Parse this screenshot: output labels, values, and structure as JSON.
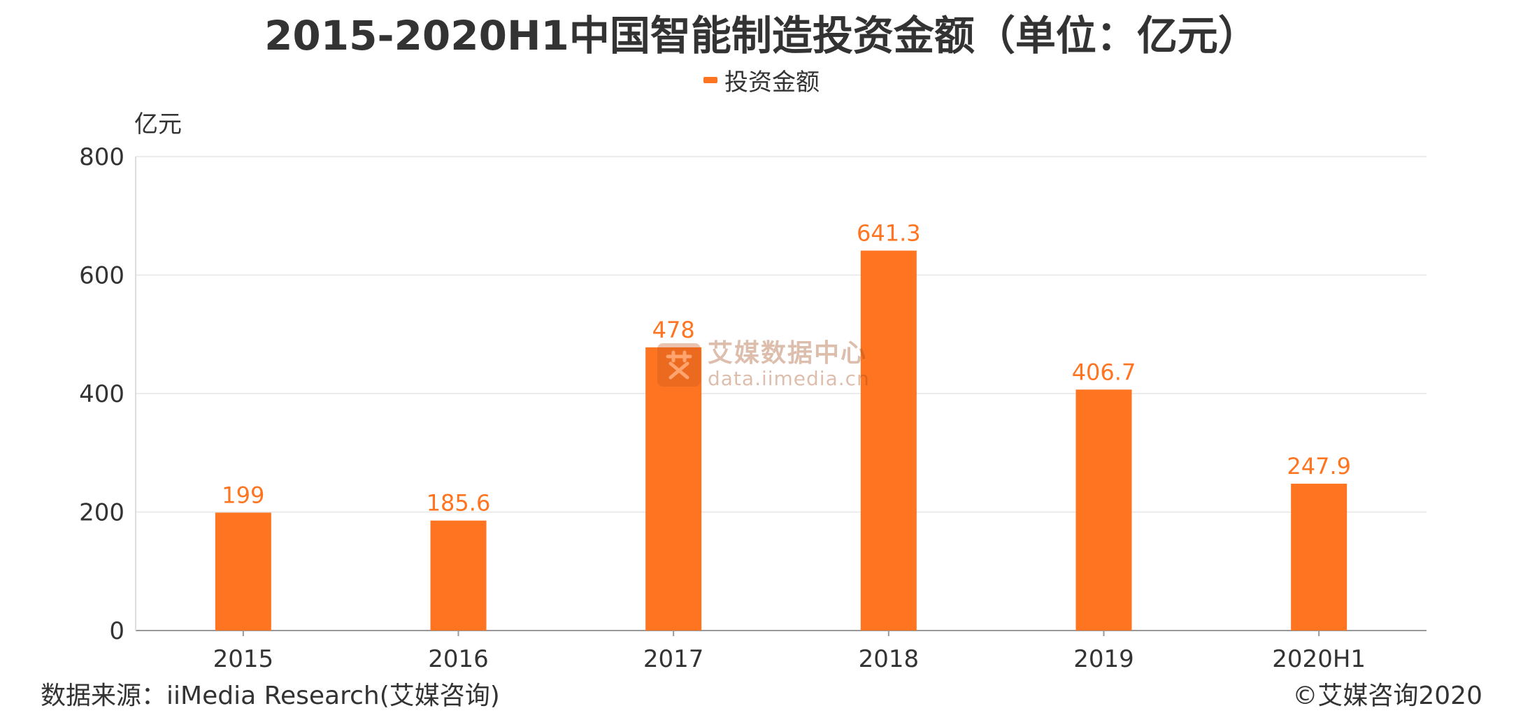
{
  "title": "2015-2020H1中国智能制造投资金额（单位：亿元）",
  "legend": {
    "label": "投资金额",
    "color": "#ff7420"
  },
  "unit_label": "亿元",
  "source": "数据来源：iiMedia Research(艾媒咨询)",
  "copyright": "©艾媒咨询2020",
  "watermark": {
    "cn": "艾媒数据中心",
    "en": "data.iimedia.cn",
    "logo_char": "艾"
  },
  "colors": {
    "bar": "#ff7420",
    "label": "#ff7420",
    "grid": "#e6e6e6",
    "axis": "#999999",
    "text": "#333333"
  },
  "chart_data": {
    "type": "bar",
    "categories": [
      "2015",
      "2016",
      "2017",
      "2018",
      "2019",
      "2020H1"
    ],
    "series": [
      {
        "name": "投资金额",
        "values": [
          199,
          185.6,
          478,
          641.3,
          406.7,
          247.9
        ],
        "value_labels": [
          "199",
          "185.6",
          "478",
          "641.3",
          "406.7",
          "247.9"
        ]
      }
    ],
    "ylim": [
      0,
      800
    ],
    "yticks": [
      0,
      200,
      400,
      600,
      800
    ],
    "ylabel": "亿元",
    "xlabel": "",
    "grid": true,
    "legend_position": "top-center"
  }
}
